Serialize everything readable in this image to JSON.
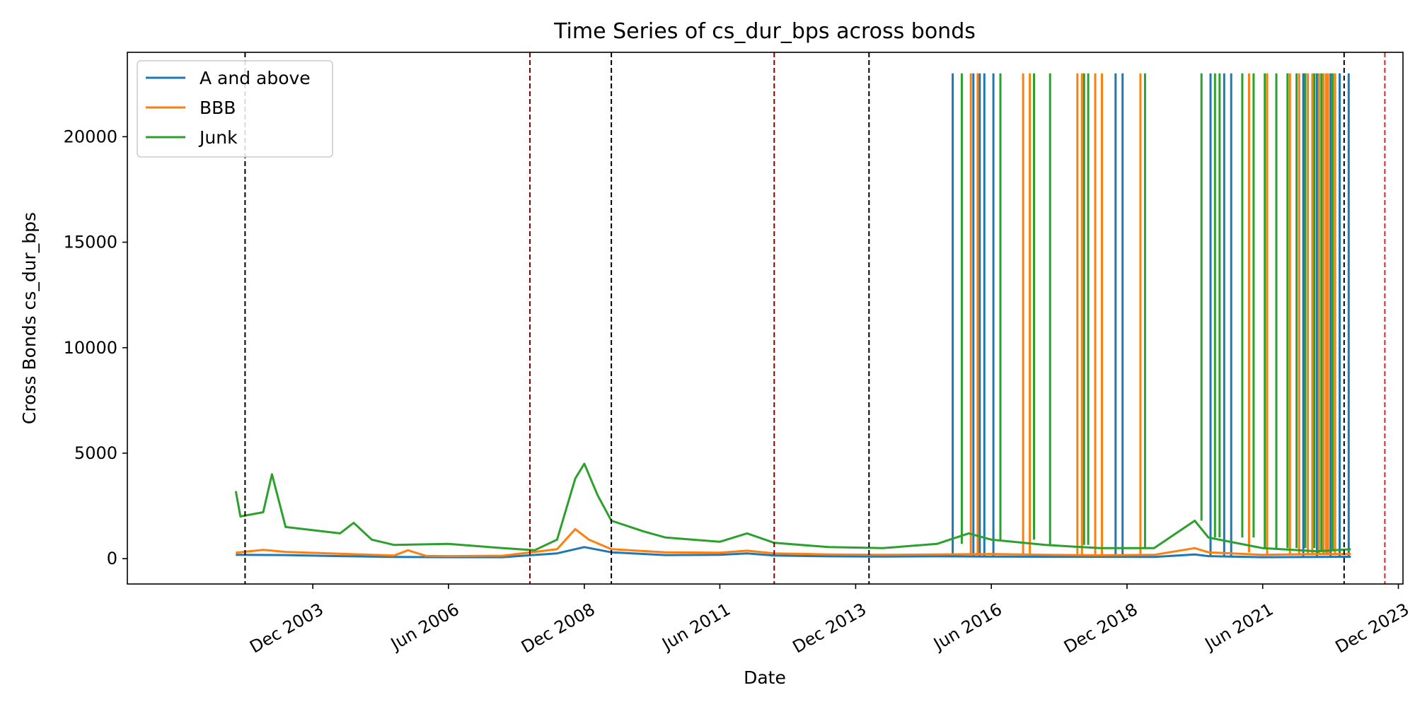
{
  "chart_data": {
    "type": "line",
    "title": "Time Series of cs_dur_bps across bonds",
    "xlabel": "Date",
    "ylabel": "Cross Bonds cs_dur_bps",
    "xlim": [
      "2000-07-01",
      "2024-01-01"
    ],
    "ylim": [
      -1200,
      24000
    ],
    "x_ticks": [
      "2003-12-01",
      "2006-06-01",
      "2008-12-01",
      "2011-06-01",
      "2013-12-01",
      "2016-06-01",
      "2018-12-01",
      "2021-06-01",
      "2023-12-01"
    ],
    "x_tick_labels": [
      "Dec 2003",
      "Jun 2006",
      "Dec 2008",
      "Jun 2011",
      "Dec 2013",
      "Jun 2016",
      "Dec 2018",
      "Jun 2021",
      "Dec 2023"
    ],
    "y_ticks": [
      0,
      5000,
      10000,
      15000,
      20000
    ],
    "y_tick_labels": [
      "0",
      "5000",
      "10000",
      "15000",
      "20000"
    ],
    "grid": false,
    "legend_position": "top-left",
    "series": [
      {
        "name": "A and above",
        "color": "#1f77b4",
        "points": [
          [
            "2002-07-01",
            180
          ],
          [
            "2003-06-01",
            170
          ],
          [
            "2004-06-01",
            120
          ],
          [
            "2005-06-01",
            80
          ],
          [
            "2006-06-01",
            70
          ],
          [
            "2007-06-01",
            70
          ],
          [
            "2008-06-01",
            250
          ],
          [
            "2008-12-01",
            550
          ],
          [
            "2009-06-01",
            300
          ],
          [
            "2010-06-01",
            170
          ],
          [
            "2011-06-01",
            180
          ],
          [
            "2011-12-01",
            250
          ],
          [
            "2012-06-01",
            150
          ],
          [
            "2013-06-01",
            110
          ],
          [
            "2014-06-01",
            100
          ],
          [
            "2015-06-01",
            110
          ],
          [
            "2016-06-01",
            100
          ],
          [
            "2017-06-01",
            90
          ],
          [
            "2018-06-01",
            90
          ],
          [
            "2019-06-01",
            80
          ],
          [
            "2020-03-01",
            200
          ],
          [
            "2020-06-01",
            120
          ],
          [
            "2021-06-01",
            70
          ],
          [
            "2022-06-01",
            80
          ],
          [
            "2023-01-15",
            90
          ]
        ],
        "spikes": [
          "2015-09-15",
          "2016-02-01",
          "2016-03-15",
          "2016-04-15",
          "2016-06-15",
          "2018-09-15",
          "2018-11-01",
          "2020-06-15",
          "2020-09-15",
          "2020-11-01",
          "2022-03-01",
          "2022-06-01",
          "2022-09-01",
          "2022-11-01",
          "2023-01-01"
        ]
      },
      {
        "name": "BBB",
        "color": "#ff7f0e",
        "points": [
          [
            "2002-07-01",
            280
          ],
          [
            "2003-01-01",
            420
          ],
          [
            "2003-06-01",
            320
          ],
          [
            "2004-06-01",
            230
          ],
          [
            "2005-06-01",
            150
          ],
          [
            "2005-09-01",
            400
          ],
          [
            "2006-01-01",
            130
          ],
          [
            "2006-06-01",
            120
          ],
          [
            "2007-06-01",
            140
          ],
          [
            "2008-06-01",
            450
          ],
          [
            "2008-10-01",
            1400
          ],
          [
            "2009-01-01",
            900
          ],
          [
            "2009-06-01",
            450
          ],
          [
            "2010-06-01",
            300
          ],
          [
            "2011-06-01",
            280
          ],
          [
            "2011-12-01",
            380
          ],
          [
            "2012-06-01",
            250
          ],
          [
            "2013-06-01",
            200
          ],
          [
            "2014-06-01",
            180
          ],
          [
            "2015-06-01",
            200
          ],
          [
            "2016-06-01",
            220
          ],
          [
            "2017-06-01",
            180
          ],
          [
            "2018-06-01",
            160
          ],
          [
            "2019-06-01",
            180
          ],
          [
            "2020-03-01",
            500
          ],
          [
            "2020-06-01",
            300
          ],
          [
            "2021-06-01",
            180
          ],
          [
            "2022-06-01",
            220
          ],
          [
            "2023-01-15",
            220
          ]
        ],
        "spikes": [
          "2016-01-15",
          "2016-03-01",
          "2017-01-01",
          "2017-02-15",
          "2018-01-01",
          "2018-02-01",
          "2018-05-01",
          "2018-06-15",
          "2019-03-01",
          "2021-03-01",
          "2021-07-01",
          "2021-12-01",
          "2022-02-01",
          "2022-04-01",
          "2022-05-01",
          "2022-06-15",
          "2022-07-15",
          "2022-08-01",
          "2022-08-15",
          "2022-10-01"
        ]
      },
      {
        "name": "Junk",
        "color": "#2ca02c",
        "points": [
          [
            "2002-07-01",
            3200
          ],
          [
            "2002-08-01",
            2000
          ],
          [
            "2003-01-01",
            2200
          ],
          [
            "2003-03-01",
            4000
          ],
          [
            "2003-06-01",
            1500
          ],
          [
            "2004-06-01",
            1200
          ],
          [
            "2004-09-01",
            1700
          ],
          [
            "2005-01-01",
            900
          ],
          [
            "2005-06-01",
            650
          ],
          [
            "2006-06-01",
            700
          ],
          [
            "2007-06-01",
            500
          ],
          [
            "2008-01-01",
            400
          ],
          [
            "2008-06-01",
            900
          ],
          [
            "2008-10-01",
            3800
          ],
          [
            "2008-12-01",
            4500
          ],
          [
            "2009-03-01",
            3000
          ],
          [
            "2009-06-01",
            1800
          ],
          [
            "2010-01-01",
            1300
          ],
          [
            "2010-06-01",
            1000
          ],
          [
            "2011-06-01",
            800
          ],
          [
            "2011-12-01",
            1200
          ],
          [
            "2012-06-01",
            750
          ],
          [
            "2013-06-01",
            550
          ],
          [
            "2014-06-01",
            500
          ],
          [
            "2015-06-01",
            700
          ],
          [
            "2016-01-01",
            1200
          ],
          [
            "2016-06-01",
            900
          ],
          [
            "2017-06-01",
            650
          ],
          [
            "2018-06-01",
            500
          ],
          [
            "2019-06-01",
            500
          ],
          [
            "2020-03-01",
            1800
          ],
          [
            "2020-06-01",
            1000
          ],
          [
            "2021-06-01",
            500
          ],
          [
            "2022-06-01",
            350
          ],
          [
            "2023-01-15",
            450
          ]
        ],
        "spikes": [
          "2015-11-15",
          "2016-08-01",
          "2017-03-15",
          "2017-07-01",
          "2018-02-15",
          "2018-03-15",
          "2019-04-01",
          "2020-04-15",
          "2020-07-15",
          "2020-08-15",
          "2021-01-15",
          "2021-04-01",
          "2021-06-15",
          "2021-09-01",
          "2021-11-15",
          "2022-01-15",
          "2022-03-15",
          "2022-05-15",
          "2022-07-01",
          "2022-09-15"
        ],
        "spike_value": 23000
      }
    ],
    "spike_value": 23000,
    "vertical_lines": [
      {
        "x": "2002-09-01",
        "color": "#000000",
        "style": "dashed"
      },
      {
        "x": "2007-12-01",
        "color": "#800000",
        "style": "dashed"
      },
      {
        "x": "2009-06-01",
        "color": "#000000",
        "style": "dashed"
      },
      {
        "x": "2012-06-01",
        "color": "#800000",
        "style": "dashed"
      },
      {
        "x": "2014-03-01",
        "color": "#000000",
        "style": "dashed"
      },
      {
        "x": "2022-12-01",
        "color": "#000000",
        "style": "dashed"
      },
      {
        "x": "2023-09-01",
        "color": "#d62728",
        "style": "dashed"
      }
    ]
  }
}
